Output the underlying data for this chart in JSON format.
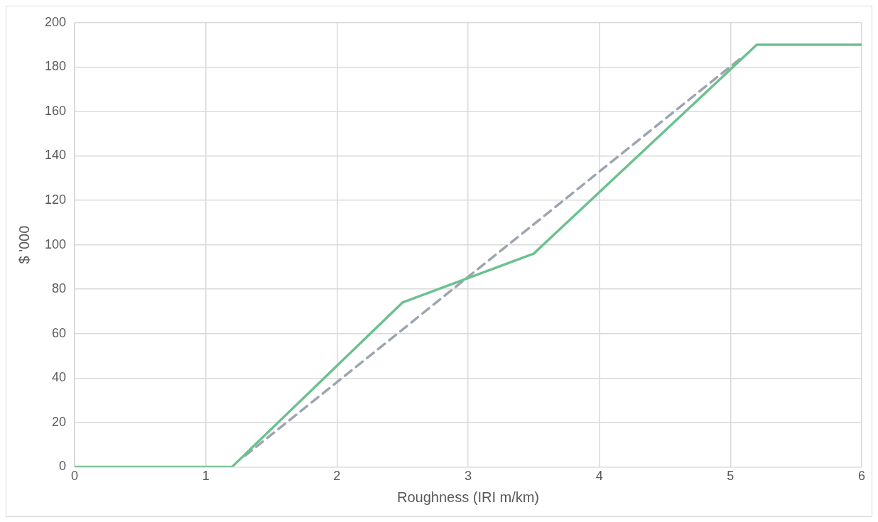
{
  "chart_data": {
    "type": "line",
    "xlabel": "Roughness (IRI m/km)",
    "ylabel": "$ '000",
    "xlim": [
      0,
      6
    ],
    "xticks": [
      0,
      1,
      2,
      3,
      4,
      5,
      6
    ],
    "ylim": [
      0,
      200
    ],
    "yticks": [
      0,
      20,
      40,
      60,
      80,
      100,
      120,
      140,
      160,
      180,
      200
    ],
    "grid": true,
    "legend": false,
    "marker": "none",
    "series": [
      {
        "color": "#6cc18f",
        "x": [
          0,
          1.2,
          2.5,
          3.5,
          5.2,
          6
        ],
        "values": [
          0,
          0,
          74,
          96,
          190,
          190
        ],
        "line_style": "solid"
      },
      {
        "color": "#9ea5b0",
        "x": [
          1.3,
          5.1
        ],
        "values": [
          5,
          185
        ],
        "line_style": "dashed"
      }
    ]
  }
}
